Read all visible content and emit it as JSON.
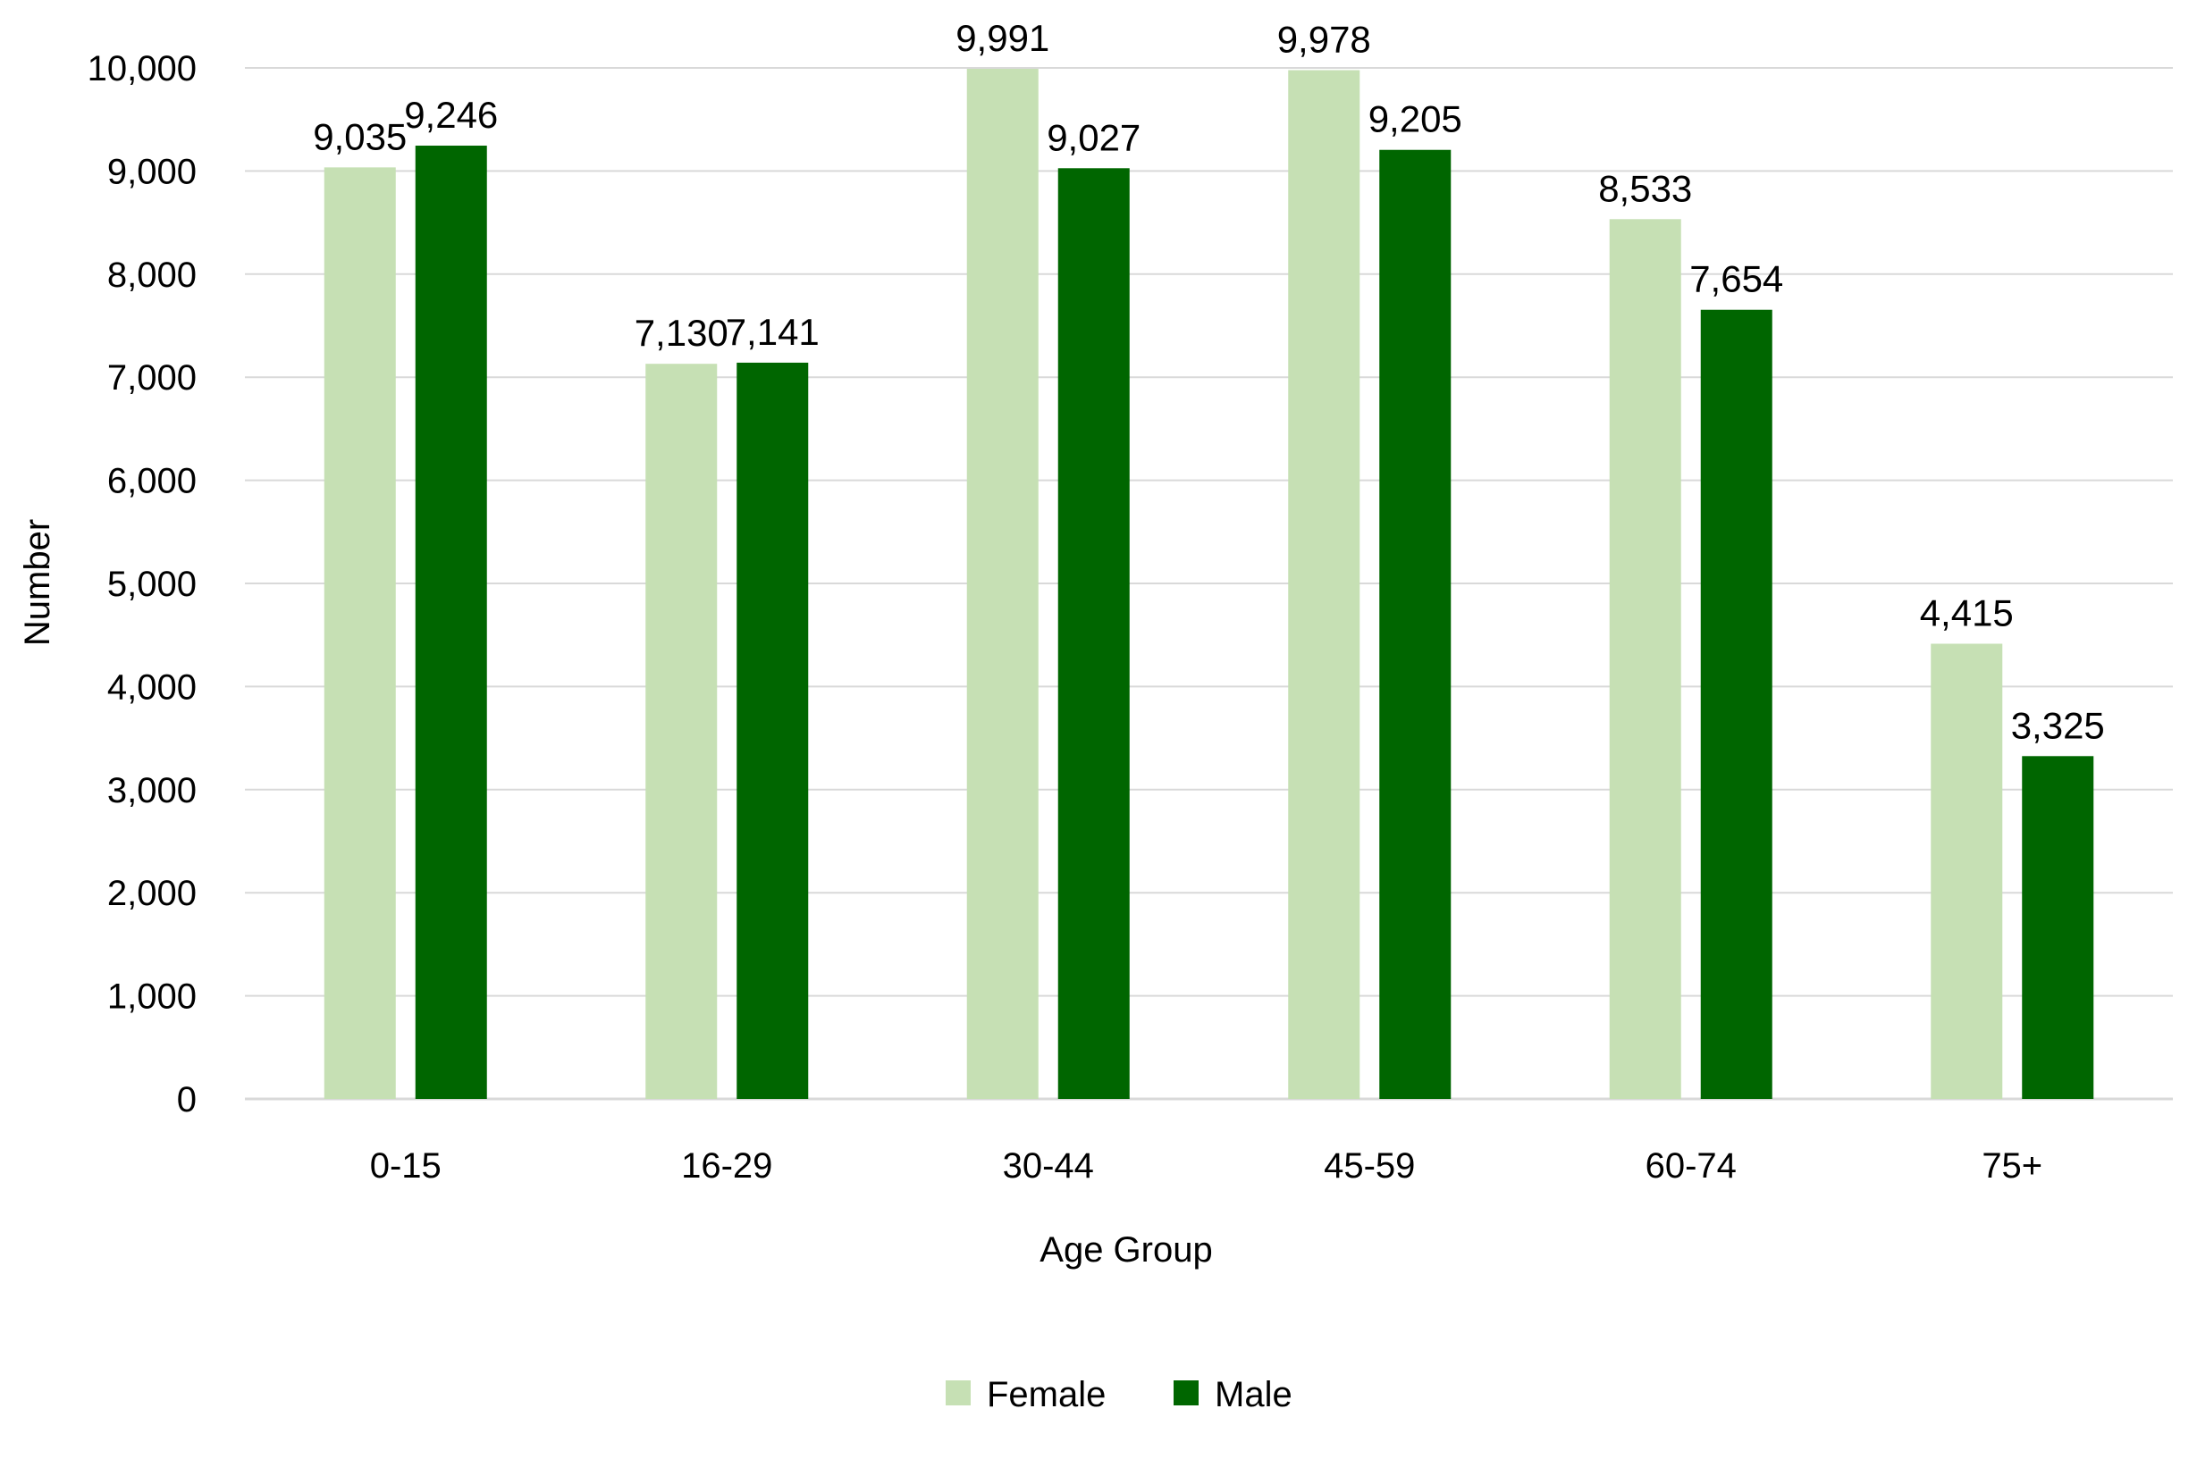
{
  "chart_data": {
    "type": "bar",
    "title": "",
    "xlabel": "Age Group",
    "ylabel": "Number",
    "categories": [
      "0-15",
      "16-29",
      "30-44",
      "45-59",
      "60-74",
      "75+"
    ],
    "series": [
      {
        "name": "Female",
        "color": "#c6e0b4",
        "values": [
          9035,
          7130,
          9991,
          9978,
          8533,
          4415
        ],
        "labels": [
          "9,035",
          "7,130",
          "9,991",
          "9,978",
          "8,533",
          "4,415"
        ]
      },
      {
        "name": "Male",
        "color": "#006600",
        "values": [
          9246,
          7141,
          9027,
          9205,
          7654,
          3325
        ],
        "labels": [
          "9,246",
          "7,141",
          "9,027",
          "9,205",
          "7,654",
          "3,325"
        ]
      }
    ],
    "ylim": [
      0,
      10000
    ],
    "yticks": [
      0,
      1000,
      2000,
      3000,
      4000,
      5000,
      6000,
      7000,
      8000,
      9000,
      10000
    ],
    "ytick_labels": [
      "0",
      "1,000",
      "2,000",
      "3,000",
      "4,000",
      "5,000",
      "6,000",
      "7,000",
      "8,000",
      "9,000",
      "10,000"
    ],
    "grid": true,
    "legend": "bottom"
  }
}
